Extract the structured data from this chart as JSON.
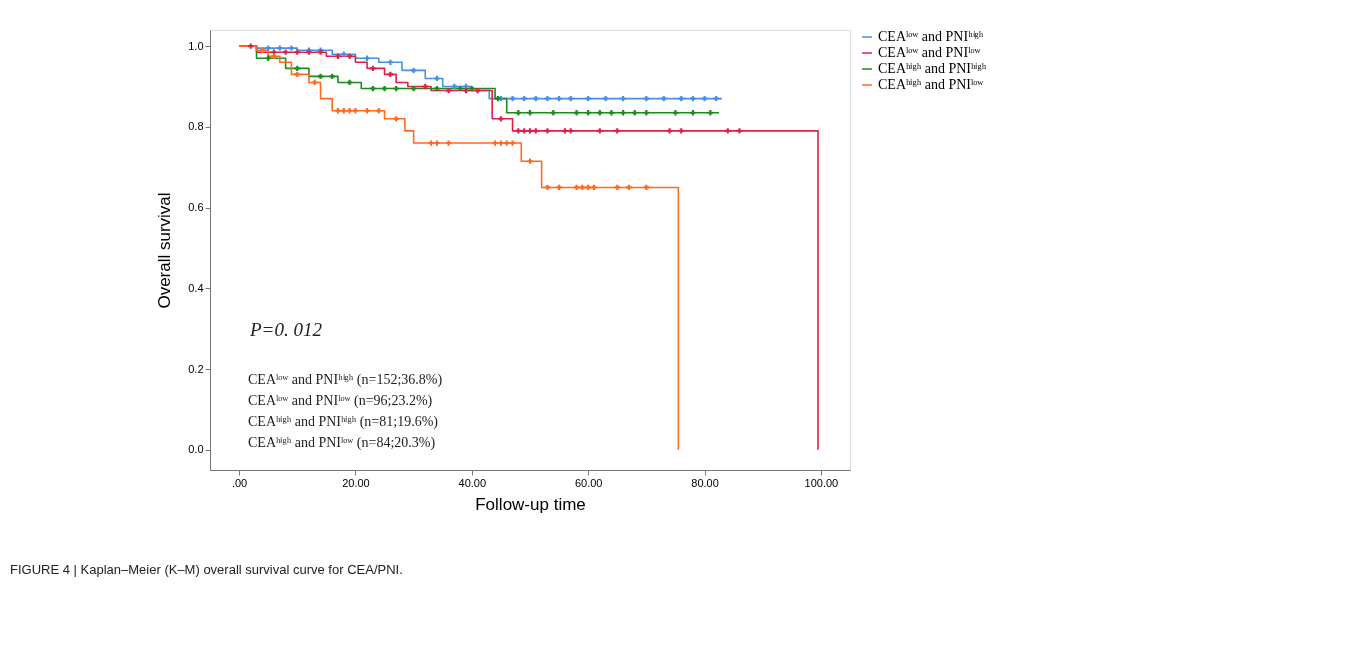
{
  "chart_data": {
    "type": "step",
    "xlabel": "Follow-up time",
    "ylabel": "Overall survival",
    "xlim": [
      -5,
      105
    ],
    "ylim": [
      -0.05,
      1.04
    ],
    "xticks": [
      {
        "value": 0,
        "label": ".00"
      },
      {
        "value": 20,
        "label": "20.00"
      },
      {
        "value": 40,
        "label": "40.00"
      },
      {
        "value": 60,
        "label": "60.00"
      },
      {
        "value": 80,
        "label": "80.00"
      },
      {
        "value": 100,
        "label": "100.00"
      }
    ],
    "yticks": [
      {
        "value": 0,
        "label": "0.0"
      },
      {
        "value": 0.2,
        "label": "0.2"
      },
      {
        "value": 0.4,
        "label": "0.4"
      },
      {
        "value": 0.6,
        "label": "0.6"
      },
      {
        "value": 0.8,
        "label": "0.8"
      },
      {
        "value": 1,
        "label": "1.0"
      }
    ],
    "grid": false,
    "legend": "top right",
    "line_style": "solid",
    "series": [
      {
        "name": "CEAˡᵒʷ and PNIʰⁱᵍʰ",
        "color": "#4a90e2",
        "x": [
          0,
          3,
          10,
          16,
          20,
          24,
          28,
          32,
          35,
          40,
          43,
          83
        ],
        "values": [
          1.0,
          0.995,
          0.99,
          0.98,
          0.97,
          0.96,
          0.94,
          0.92,
          0.9,
          0.89,
          0.87,
          0.87
        ]
      },
      {
        "name": "CEAˡᵒʷ and PNIˡᵒʷ",
        "color": "#e0204a",
        "x": [
          0,
          3,
          15,
          20,
          22,
          25,
          27,
          29,
          33,
          43.5,
          47,
          99.5,
          99.5
        ],
        "values": [
          1.0,
          0.985,
          0.975,
          0.96,
          0.945,
          0.93,
          0.91,
          0.9,
          0.89,
          0.82,
          0.79,
          0.79,
          0
        ]
      },
      {
        "name": "CEAʰⁱᵍʰ and PNIʰⁱᵍʰ",
        "color": "#1f8a1f",
        "x": [
          0,
          3,
          8,
          12,
          17,
          21,
          44,
          46,
          82.5
        ],
        "values": [
          1.0,
          0.97,
          0.945,
          0.925,
          0.91,
          0.895,
          0.87,
          0.835,
          0.835
        ]
      },
      {
        "name": "CEAʰⁱᵍʰ and PNIˡᵒʷ",
        "color": "#ff6a1f",
        "x": [
          0,
          3,
          5,
          7,
          9,
          12,
          14,
          16,
          25,
          28.5,
          30,
          48.5,
          52,
          75.5,
          75.5
        ],
        "values": [
          1.0,
          0.99,
          0.975,
          0.96,
          0.93,
          0.91,
          0.87,
          0.84,
          0.82,
          0.79,
          0.76,
          0.715,
          0.65,
          0.65,
          0
        ]
      },
      {
        "color": "#4a90e2",
        "type": "scatter",
        "marker": "cross",
        "x": [
          5,
          7,
          9,
          12,
          14,
          18,
          22,
          26,
          30,
          34,
          37,
          39,
          45,
          47,
          49,
          51,
          53,
          55,
          57,
          60,
          63,
          66,
          70,
          73,
          76,
          78,
          80,
          82
        ],
        "values": [
          0.995,
          0.995,
          0.995,
          0.99,
          0.99,
          0.98,
          0.97,
          0.96,
          0.94,
          0.92,
          0.9,
          0.9,
          0.87,
          0.87,
          0.87,
          0.87,
          0.87,
          0.87,
          0.87,
          0.87,
          0.87,
          0.87,
          0.87,
          0.87,
          0.87,
          0.87,
          0.87,
          0.87
        ]
      },
      {
        "color": "#e0204a",
        "type": "scatter",
        "marker": "cross",
        "x": [
          2,
          6,
          8,
          10,
          12,
          14,
          17,
          19,
          23,
          26,
          32,
          36,
          39,
          41,
          45,
          48,
          49,
          50,
          51,
          53,
          56,
          57,
          62,
          65,
          74,
          76,
          84,
          86
        ],
        "values": [
          1.0,
          0.985,
          0.985,
          0.985,
          0.985,
          0.985,
          0.975,
          0.975,
          0.945,
          0.93,
          0.9,
          0.89,
          0.89,
          0.89,
          0.82,
          0.79,
          0.79,
          0.79,
          0.79,
          0.79,
          0.79,
          0.79,
          0.79,
          0.79,
          0.79,
          0.79,
          0.79,
          0.79
        ]
      },
      {
        "color": "#1f8a1f",
        "type": "scatter",
        "marker": "cross",
        "x": [
          5,
          10,
          14,
          16,
          19,
          23,
          25,
          27,
          30,
          34,
          38,
          40,
          44.5,
          48,
          50,
          54,
          58,
          60,
          62,
          64,
          66,
          68,
          70,
          75,
          78,
          81
        ],
        "values": [
          0.97,
          0.945,
          0.925,
          0.925,
          0.91,
          0.895,
          0.895,
          0.895,
          0.895,
          0.895,
          0.895,
          0.895,
          0.87,
          0.835,
          0.835,
          0.835,
          0.835,
          0.835,
          0.835,
          0.835,
          0.835,
          0.835,
          0.835,
          0.835,
          0.835,
          0.835
        ]
      },
      {
        "color": "#ff6a1f",
        "type": "scatter",
        "marker": "cross",
        "x": [
          4,
          6,
          10,
          13,
          17,
          18,
          19,
          20,
          22,
          24,
          27,
          33,
          34,
          36,
          44,
          45,
          46,
          47,
          50,
          53,
          55,
          58,
          59,
          60,
          61,
          65,
          67,
          70
        ],
        "values": [
          0.99,
          0.975,
          0.93,
          0.91,
          0.84,
          0.84,
          0.84,
          0.84,
          0.84,
          0.84,
          0.82,
          0.76,
          0.76,
          0.76,
          0.76,
          0.76,
          0.76,
          0.76,
          0.715,
          0.65,
          0.65,
          0.65,
          0.65,
          0.65,
          0.65,
          0.65,
          0.65,
          0.65
        ]
      }
    ],
    "annotations": [
      "P=0. 012",
      "CEAˡᵒʷ and PNIʰⁱᵍʰ (n=152;36.8%)",
      "CEAˡᵒʷ and PNIˡᵒʷ (n=96;23.2%)",
      "CEAʰⁱᵍʰ and PNIʰⁱᵍʰ (n=81;19.6%)",
      "CEAʰⁱᵍʰ and PNIˡᵒʷ (n=84;20.3%)",
      "FIGURE 4 | Kaplan–Meier (K–M) overall survival curve for CEA/PNI."
    ]
  }
}
